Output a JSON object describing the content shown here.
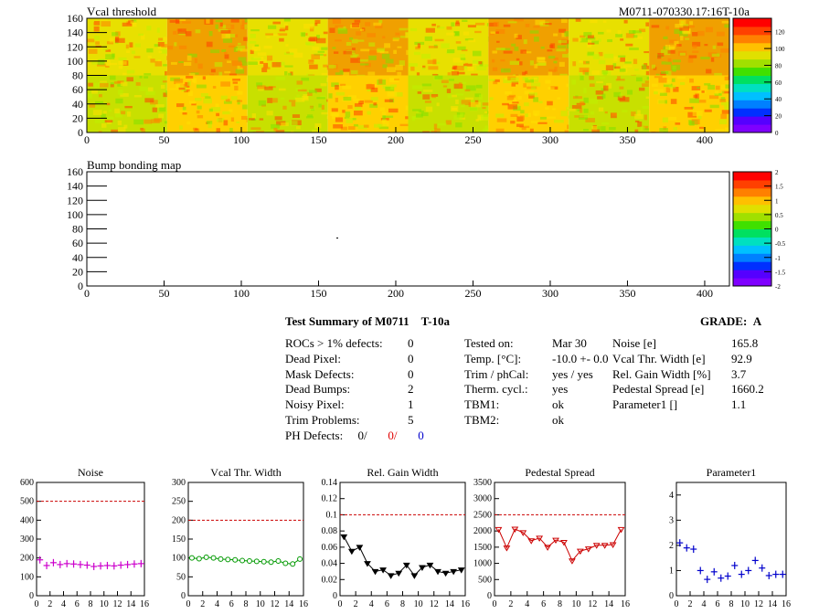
{
  "maps": {
    "vcal": {
      "title": "Vcal threshold",
      "module_id": "M0711-070330.17:16T-10a",
      "x_ticks": [
        "0",
        "50",
        "100",
        "150",
        "200",
        "250",
        "300",
        "350",
        "400"
      ],
      "y_ticks": [
        "0",
        "20",
        "40",
        "60",
        "80",
        "100",
        "120",
        "140",
        "160"
      ],
      "colorbar_ticks": [
        "0",
        "20",
        "40",
        "60",
        "80",
        "100",
        "120"
      ]
    },
    "bump": {
      "title": "Bump bonding map",
      "x_ticks": [
        "0",
        "50",
        "100",
        "150",
        "200",
        "250",
        "300",
        "350",
        "400"
      ],
      "y_ticks": [
        "0",
        "20",
        "40",
        "60",
        "80",
        "100",
        "120",
        "140",
        "160"
      ],
      "colorbar_ticks": [
        "-2",
        "-1.5",
        "-1",
        "-0.5",
        "0",
        "0.5",
        "1",
        "1.5",
        "2"
      ]
    }
  },
  "summary": {
    "title": "Test Summary of M0711",
    "test_id": "T-10a",
    "grade_label": "GRADE:",
    "grade": "A",
    "defects": [
      {
        "label": "ROCs > 1% defects:",
        "value": "0"
      },
      {
        "label": "Dead Pixel:",
        "value": "0"
      },
      {
        "label": "Mask Defects:",
        "value": "0"
      },
      {
        "label": "Dead Bumps:",
        "value": "2"
      },
      {
        "label": "Noisy Pixel:",
        "value": "1"
      },
      {
        "label": "Trim Problems:",
        "value": "5"
      }
    ],
    "ph_defects": {
      "label": "PH Defects:",
      "v1": "0/",
      "v2": "0/",
      "v3": "0"
    },
    "conditions": [
      {
        "label": "Tested on:",
        "value": "Mar 30"
      },
      {
        "label": "Temp. [°C]:",
        "value": "-10.0 +- 0.0"
      },
      {
        "label": "Trim / phCal:",
        "value": "yes / yes"
      },
      {
        "label": "Therm. cycl.:",
        "value": "yes"
      },
      {
        "label": "TBM1:",
        "value": "ok"
      },
      {
        "label": "TBM2:",
        "value": "ok"
      }
    ],
    "results": [
      {
        "label": "Noise [e]",
        "value": "165.8"
      },
      {
        "label": "Vcal Thr. Width [e]",
        "value": "92.9"
      },
      {
        "label": "Rel. Gain Width [%]",
        "value": "3.7"
      },
      {
        "label": "Pedestal Spread [e]",
        "value": "1660.2"
      },
      {
        "label": "Parameter1 []",
        "value": "1.1"
      }
    ]
  },
  "chart_data": [
    {
      "type": "scatter",
      "title": "Noise",
      "x": [
        0,
        1,
        2,
        3,
        4,
        5,
        6,
        7,
        8,
        9,
        10,
        11,
        12,
        13,
        14,
        15
      ],
      "values": [
        190,
        160,
        175,
        165,
        170,
        168,
        165,
        162,
        155,
        158,
        160,
        158,
        162,
        165,
        168,
        170
      ],
      "ylim": [
        0,
        600
      ],
      "xlim": [
        0,
        16
      ],
      "yticks": [
        0,
        100,
        200,
        300,
        400,
        500,
        600
      ],
      "xticks": [
        0,
        2,
        4,
        6,
        8,
        10,
        12,
        14,
        16
      ],
      "ref_line": 500,
      "color": "#cc00cc",
      "marker": "cross"
    },
    {
      "type": "line",
      "title": "Vcal Thr. Width",
      "x": [
        0,
        1,
        2,
        3,
        4,
        5,
        6,
        7,
        8,
        9,
        10,
        11,
        12,
        13,
        14,
        15
      ],
      "values": [
        100,
        98,
        102,
        100,
        97,
        96,
        95,
        93,
        92,
        91,
        90,
        89,
        92,
        86,
        84,
        97
      ],
      "ylim": [
        0,
        300
      ],
      "xlim": [
        0,
        16
      ],
      "yticks": [
        0,
        50,
        100,
        150,
        200,
        250,
        300
      ],
      "xticks": [
        0,
        2,
        4,
        6,
        8,
        10,
        12,
        14,
        16
      ],
      "ref_line": 200,
      "color": "#009900",
      "marker": "circle"
    },
    {
      "type": "line",
      "title": "Rel. Gain Width",
      "x": [
        0,
        1,
        2,
        3,
        4,
        5,
        6,
        7,
        8,
        9,
        10,
        11,
        12,
        13,
        14,
        15
      ],
      "values": [
        0.073,
        0.055,
        0.06,
        0.04,
        0.03,
        0.032,
        0.025,
        0.028,
        0.038,
        0.025,
        0.035,
        0.038,
        0.03,
        0.028,
        0.03,
        0.032
      ],
      "ylim": [
        0,
        0.14
      ],
      "xlim": [
        0,
        16
      ],
      "yticks": [
        0,
        0.02,
        0.04,
        0.06,
        0.08,
        0.1,
        0.12,
        0.14
      ],
      "xticks": [
        0,
        2,
        4,
        6,
        8,
        10,
        12,
        14,
        16
      ],
      "ref_line": 0.1,
      "color": "#000000",
      "marker": "triangle"
    },
    {
      "type": "line",
      "title": "Pedestal Spread",
      "x": [
        0,
        1,
        2,
        3,
        4,
        5,
        6,
        7,
        8,
        9,
        10,
        11,
        12,
        13,
        14,
        15
      ],
      "values": [
        2050,
        1480,
        2060,
        1950,
        1700,
        1780,
        1500,
        1720,
        1650,
        1080,
        1380,
        1450,
        1560,
        1560,
        1580,
        2050
      ],
      "ylim": [
        0,
        3500
      ],
      "xlim": [
        0,
        16
      ],
      "yticks": [
        0,
        500,
        1000,
        1500,
        2000,
        2500,
        3000,
        3500
      ],
      "xticks": [
        0,
        2,
        4,
        6,
        8,
        10,
        12,
        14,
        16
      ],
      "ref_line": 2500,
      "color": "#cc0000",
      "marker": "triangle"
    },
    {
      "type": "scatter",
      "title": "Parameter1",
      "x": [
        0,
        1,
        2,
        3,
        4,
        5,
        6,
        7,
        8,
        9,
        10,
        11,
        12,
        13,
        14,
        15
      ],
      "values": [
        2.1,
        1.9,
        1.85,
        1.0,
        0.65,
        0.95,
        0.7,
        0.78,
        1.2,
        0.85,
        1.0,
        1.4,
        1.1,
        0.8,
        0.85,
        0.85
      ],
      "ylim": [
        0,
        4.5
      ],
      "xlim": [
        0,
        16
      ],
      "yticks": [
        0,
        1,
        2,
        3,
        4
      ],
      "xticks": [
        0,
        2,
        4,
        6,
        8,
        10,
        12,
        14,
        16
      ],
      "ref_line": null,
      "color": "#0000cc",
      "marker": "cross"
    }
  ]
}
